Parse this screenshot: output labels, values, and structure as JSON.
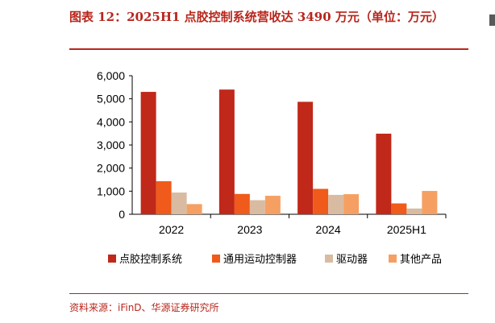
{
  "figure": {
    "title": "图表 12：2025H1 点胶控制系统营收达 3490 万元（单位：万元）",
    "source": "资料来源：iFinD、华源证券研究所"
  },
  "chart_data": {
    "type": "bar",
    "categories": [
      "2022",
      "2023",
      "2024",
      "2025H1"
    ],
    "series": [
      {
        "name": "点胶控制系统",
        "color": "#c0281a",
        "values": [
          5300,
          5400,
          4870,
          3490
        ]
      },
      {
        "name": "通用运动控制器",
        "color": "#f05a1a",
        "values": [
          1430,
          880,
          1100,
          470
        ]
      },
      {
        "name": "驱动器",
        "color": "#d9bba2",
        "values": [
          940,
          610,
          840,
          250
        ]
      },
      {
        "name": "其他产品",
        "color": "#f5a062",
        "values": [
          440,
          800,
          870,
          1010
        ]
      }
    ],
    "ylim": [
      0,
      6000
    ],
    "yticks": [
      0,
      1000,
      2000,
      3000,
      4000,
      5000,
      6000
    ],
    "ytick_labels": [
      "0",
      "1,000",
      "2,000",
      "3,000",
      "4,000",
      "5,000",
      "6,000"
    ],
    "xlabel": "",
    "ylabel": "",
    "grid": false,
    "legend_position": "bottom"
  }
}
